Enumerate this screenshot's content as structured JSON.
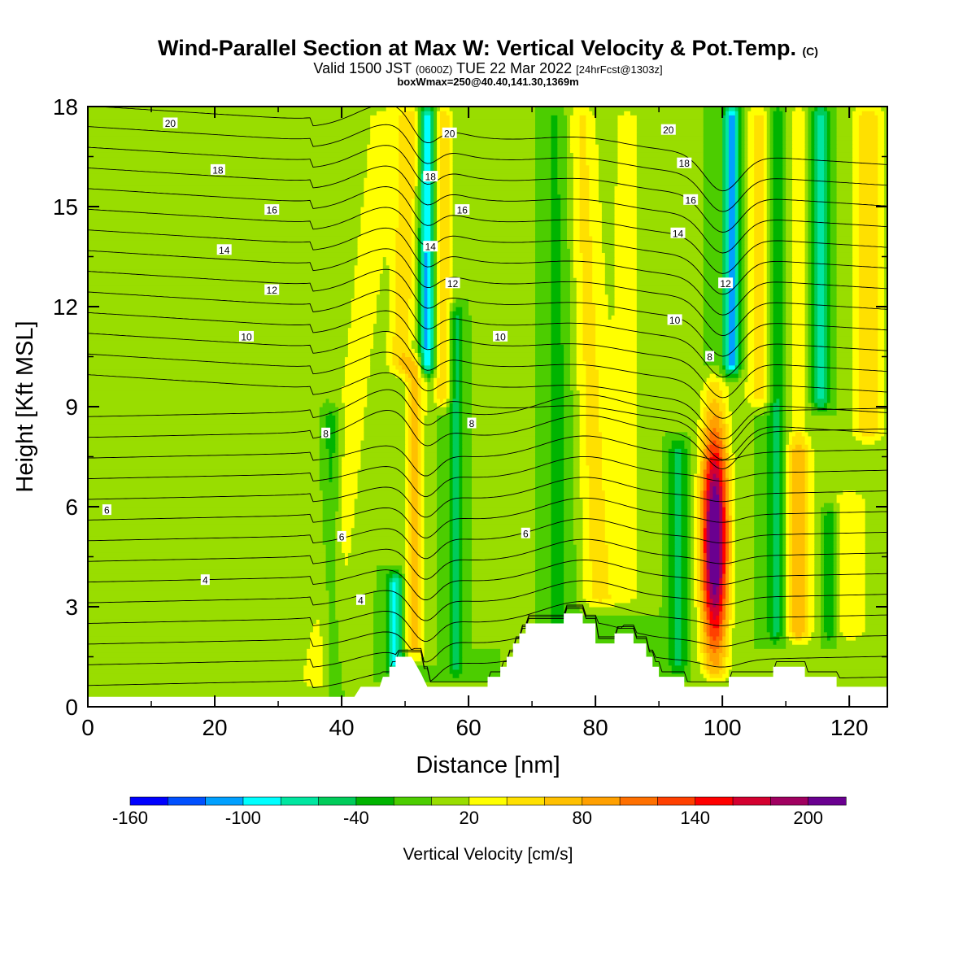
{
  "title": {
    "main": "Wind-Parallel Section at Max W: Vertical Velocity & Pot.Temp.",
    "main_suffix": "(C)",
    "valid_prefix": "Valid 1500 JST",
    "valid_utc": "(0600Z)",
    "valid_date": "TUE 22 Mar 2022",
    "valid_fcst": "[24hrFcst@1303z]",
    "boxline": "boxWmax=250@40.40,141.30,1369m"
  },
  "chart_data": {
    "type": "heatmap",
    "xlabel": "Distance [nm]",
    "ylabel": "Height [Kft MSL]",
    "xlim": [
      0,
      126
    ],
    "ylim": [
      0,
      18
    ],
    "xticks": [
      "0",
      "20",
      "40",
      "60",
      "80",
      "100",
      "120"
    ],
    "xtick_values": [
      0,
      20,
      40,
      60,
      80,
      100,
      120
    ],
    "yticks": [
      "0",
      "3",
      "6",
      "9",
      "12",
      "15",
      "18"
    ],
    "ytick_values": [
      0,
      3,
      6,
      9,
      12,
      15,
      18
    ],
    "colorbar": {
      "title": "Vertical Velocity [cm/s]",
      "min": -160,
      "max": 220,
      "step": 20,
      "labels": [
        "-160",
        "-100",
        "-40",
        "20",
        "80",
        "140",
        "200"
      ],
      "label_values": [
        -160,
        -100,
        -40,
        20,
        80,
        140,
        200
      ],
      "colors": [
        "#0000ff",
        "#0050ff",
        "#00a0ff",
        "#00ffff",
        "#00e6a0",
        "#00cc5a",
        "#00b400",
        "#4ccd00",
        "#99dd00",
        "#ffff00",
        "#ffe000",
        "#ffc000",
        "#ffa000",
        "#ff7000",
        "#ff4000",
        "#ff0000",
        "#d40030",
        "#a00060",
        "#6a0090"
      ]
    },
    "background_w": 0,
    "updrafts": [
      {
        "x": 33,
        "zmin": 0.5,
        "zmax": 10,
        "halfwidth": 3.5,
        "w": 14
      },
      {
        "x": 42,
        "zmin": 0.5,
        "zmax": 18,
        "halfwidth": 2.8,
        "w": 32,
        "tilt": 0.55
      },
      {
        "x": 51.5,
        "zmin": 1.5,
        "zmax": 10.5,
        "halfwidth": 1.6,
        "w": 65
      },
      {
        "x": 50,
        "zmin": 10,
        "zmax": 18,
        "halfwidth": 2.0,
        "w": 55,
        "tilt": 0.2
      },
      {
        "x": 56,
        "zmin": 9,
        "zmax": 18,
        "halfwidth": 1.5,
        "w": 55
      },
      {
        "x": 66,
        "zmin": 2,
        "zmax": 18,
        "halfwidth": 4.0,
        "w": 12
      },
      {
        "x": 79,
        "zmin": 3,
        "zmax": 18,
        "halfwidth": 2.5,
        "w": 45,
        "tilt": -0.2
      },
      {
        "x": 85,
        "zmin": 3,
        "zmax": 18,
        "halfwidth": 3.5,
        "w": 25
      },
      {
        "x": 98.8,
        "zmin": 0.8,
        "zmax": 10,
        "halfwidth": 2.1,
        "w": 245
      },
      {
        "x": 106,
        "zmin": 9,
        "zmax": 18,
        "halfwidth": 2.5,
        "w": 45
      },
      {
        "x": 112,
        "zmin": 2,
        "zmax": 8,
        "halfwidth": 2.0,
        "w": 75
      },
      {
        "x": 112,
        "zmin": 8,
        "zmax": 18,
        "halfwidth": 1.5,
        "w": 40
      },
      {
        "x": 123,
        "zmin": 8,
        "zmax": 18,
        "halfwidth": 2.5,
        "w": 60
      },
      {
        "x": 120,
        "zmin": 2,
        "zmax": 6.5,
        "halfwidth": 3.5,
        "w": 35
      }
    ],
    "downdrafts": [
      {
        "x": 38.5,
        "zmin": 0.5,
        "zmax": 9,
        "halfwidth": 1.5,
        "w": -38
      },
      {
        "x": 48.5,
        "zmin": 1,
        "zmax": 4,
        "halfwidth": 1.3,
        "w": -85
      },
      {
        "x": 53.5,
        "zmin": 10,
        "zmax": 18,
        "halfwidth": 1.2,
        "w": -110
      },
      {
        "x": 58,
        "zmin": 1,
        "zmax": 12,
        "halfwidth": 1.2,
        "w": -55
      },
      {
        "x": 74,
        "zmin": 2,
        "zmax": 18,
        "halfwidth": 2.5,
        "w": -25
      },
      {
        "x": 93,
        "zmin": 1,
        "zmax": 8,
        "halfwidth": 1.5,
        "w": -45
      },
      {
        "x": 101.5,
        "zmin": 10,
        "zmax": 18,
        "halfwidth": 1.3,
        "w": -110
      },
      {
        "x": 108.5,
        "zmin": 2,
        "zmax": 18,
        "halfwidth": 1.3,
        "w": -55
      },
      {
        "x": 115.5,
        "zmin": 9,
        "zmax": 18,
        "halfwidth": 1.4,
        "w": -70
      },
      {
        "x": 117,
        "zmin": 2,
        "zmax": 6,
        "halfwidth": 1.3,
        "w": -50
      }
    ],
    "terrain": [
      [
        0,
        0.3
      ],
      [
        37,
        0.3
      ],
      [
        42,
        0.3
      ],
      [
        43,
        0.6
      ],
      [
        46,
        0.6
      ],
      [
        46.5,
        0.9
      ],
      [
        47.5,
        0.9
      ],
      [
        47.5,
        1.2
      ],
      [
        48.5,
        1.2
      ],
      [
        48.5,
        1.5
      ],
      [
        51,
        1.5
      ],
      [
        52.5,
        1.0
      ],
      [
        53.5,
        0.6
      ],
      [
        63,
        0.6
      ],
      [
        63,
        0.9
      ],
      [
        65,
        0.9
      ],
      [
        65,
        1.2
      ],
      [
        66,
        1.2
      ],
      [
        66,
        1.5
      ],
      [
        67,
        1.5
      ],
      [
        67,
        1.9
      ],
      [
        68,
        1.9
      ],
      [
        68,
        2.2
      ],
      [
        69,
        2.2
      ],
      [
        69,
        2.5
      ],
      [
        75,
        2.5
      ],
      [
        75,
        2.8
      ],
      [
        78,
        2.8
      ],
      [
        78,
        2.5
      ],
      [
        80,
        2.5
      ],
      [
        80,
        1.9
      ],
      [
        83,
        1.9
      ],
      [
        83,
        2.2
      ],
      [
        86,
        2.2
      ],
      [
        86,
        1.9
      ],
      [
        88,
        1.9
      ],
      [
        88,
        1.5
      ],
      [
        89,
        1.5
      ],
      [
        89,
        1.2
      ],
      [
        90,
        1.2
      ],
      [
        90,
        0.9
      ],
      [
        94,
        0.9
      ],
      [
        94,
        0.6
      ],
      [
        101,
        0.6
      ],
      [
        101,
        0.9
      ],
      [
        108,
        0.9
      ],
      [
        108,
        1.2
      ],
      [
        113,
        1.2
      ],
      [
        113,
        0.9
      ],
      [
        118,
        0.9
      ],
      [
        118,
        0.6
      ],
      [
        126,
        0.6
      ]
    ],
    "theta_contours": [
      4,
      6,
      8,
      10,
      12,
      14,
      16,
      18,
      20
    ],
    "theta_labels": [
      {
        "text": "20",
        "x": 13,
        "z": 17.5
      },
      {
        "text": "18",
        "x": 20.5,
        "z": 16.1
      },
      {
        "text": "16",
        "x": 29,
        "z": 14.9
      },
      {
        "text": "14",
        "x": 21.5,
        "z": 13.7
      },
      {
        "text": "12",
        "x": 29,
        "z": 12.5
      },
      {
        "text": "10",
        "x": 25,
        "z": 11.1
      },
      {
        "text": "8",
        "x": 37.5,
        "z": 8.2
      },
      {
        "text": "6",
        "x": 3,
        "z": 5.9
      },
      {
        "text": "6",
        "x": 40,
        "z": 5.1
      },
      {
        "text": "4",
        "x": 18.5,
        "z": 3.8
      },
      {
        "text": "4",
        "x": 43,
        "z": 3.2
      },
      {
        "text": "20",
        "x": 57,
        "z": 17.2
      },
      {
        "text": "18",
        "x": 54,
        "z": 15.9
      },
      {
        "text": "16",
        "x": 59,
        "z": 14.9
      },
      {
        "text": "14",
        "x": 54,
        "z": 13.8
      },
      {
        "text": "12",
        "x": 57.5,
        "z": 12.7
      },
      {
        "text": "10",
        "x": 65,
        "z": 11.1
      },
      {
        "text": "8",
        "x": 60.5,
        "z": 8.5
      },
      {
        "text": "6",
        "x": 69,
        "z": 5.2
      },
      {
        "text": "20",
        "x": 91.5,
        "z": 17.3
      },
      {
        "text": "18",
        "x": 94,
        "z": 16.3
      },
      {
        "text": "16",
        "x": 95,
        "z": 15.2
      },
      {
        "text": "14",
        "x": 93,
        "z": 14.2
      },
      {
        "text": "12",
        "x": 100.5,
        "z": 12.7
      },
      {
        "text": "10",
        "x": 92.5,
        "z": 11.6
      },
      {
        "text": "8",
        "x": 98,
        "z": 10.5
      }
    ]
  }
}
